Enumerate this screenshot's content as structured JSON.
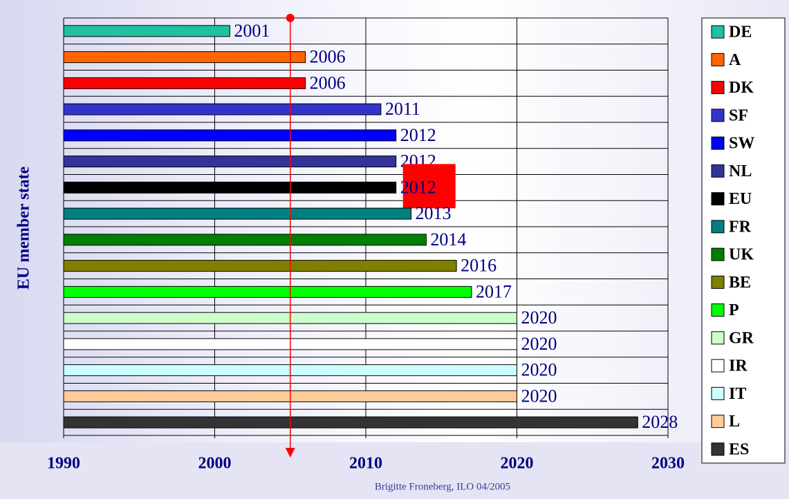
{
  "chart_data": {
    "type": "bar",
    "orientation": "horizontal",
    "y_label": "EU member state",
    "footer": "Brigitte Froneberg, ILO 04/2005",
    "categories": [
      "DE",
      "A",
      "DK",
      "SF",
      "SW",
      "NL",
      "EU",
      "FR",
      "UK",
      "BE",
      "P",
      "GR",
      "IR",
      "IT",
      "L",
      "ES"
    ],
    "values": [
      2001,
      2006,
      2006,
      2011,
      2012,
      2012,
      2012,
      2013,
      2014,
      2016,
      2017,
      2020,
      2020,
      2020,
      2020,
      2028
    ],
    "colors": [
      "#20c0a0",
      "#ff6600",
      "#ff0000",
      "#3333cc",
      "#0000ff",
      "#333399",
      "#000000",
      "#008080",
      "#008000",
      "#808000",
      "#00ff00",
      "#ccffcc",
      "#ffffff",
      "#ccffff",
      "#ffcc99",
      "#333333"
    ],
    "highlight": "EU",
    "reference_x": 2005,
    "xlim": [
      1990,
      2030
    ],
    "xticks": [
      1990,
      2000,
      2010,
      2020,
      2030
    ],
    "grid": true,
    "legend": "right"
  }
}
